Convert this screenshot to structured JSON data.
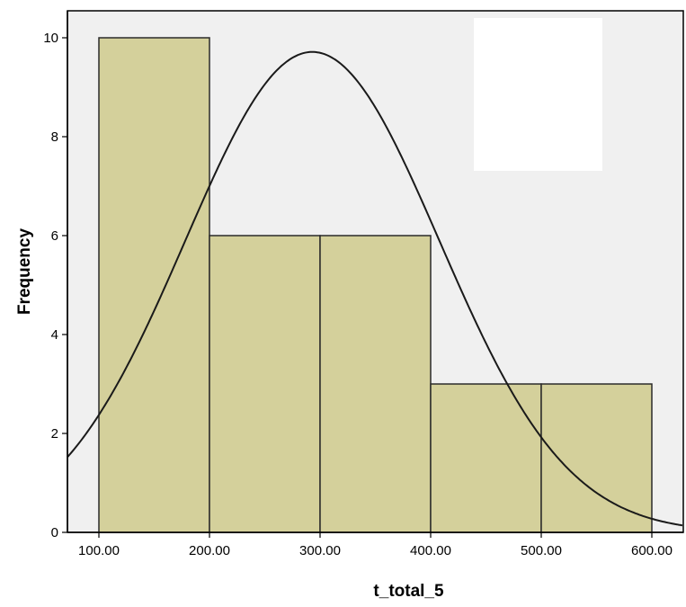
{
  "chart_data": {
    "type": "bar",
    "subtype": "histogram",
    "title": "",
    "xlabel": "t_total_5",
    "ylabel": "Frequency",
    "bins": [
      {
        "from": 100,
        "to": 200,
        "count": 10
      },
      {
        "from": 200,
        "to": 300,
        "count": 6
      },
      {
        "from": 300,
        "to": 400,
        "count": 6
      },
      {
        "from": 400,
        "to": 500,
        "count": 3
      },
      {
        "from": 500,
        "to": 600,
        "count": 3
      }
    ],
    "x_ticks": [
      "100.00",
      "200.00",
      "300.00",
      "400.00",
      "500.00",
      "600.00"
    ],
    "y_ticks": [
      "0",
      "2",
      "4",
      "6",
      "8",
      "10"
    ],
    "xlim": [
      70,
      760
    ],
    "ylim": [
      0,
      11
    ],
    "normal_curve": {
      "mean": 293,
      "std": 115,
      "n": 28
    },
    "grid": false,
    "legend": "none",
    "colors": {
      "bar_fill": "#d4d09b",
      "bar_stroke": "#2b2b2b",
      "plot_background": "#f0f0f0",
      "curve": "#1a1a1a"
    }
  }
}
